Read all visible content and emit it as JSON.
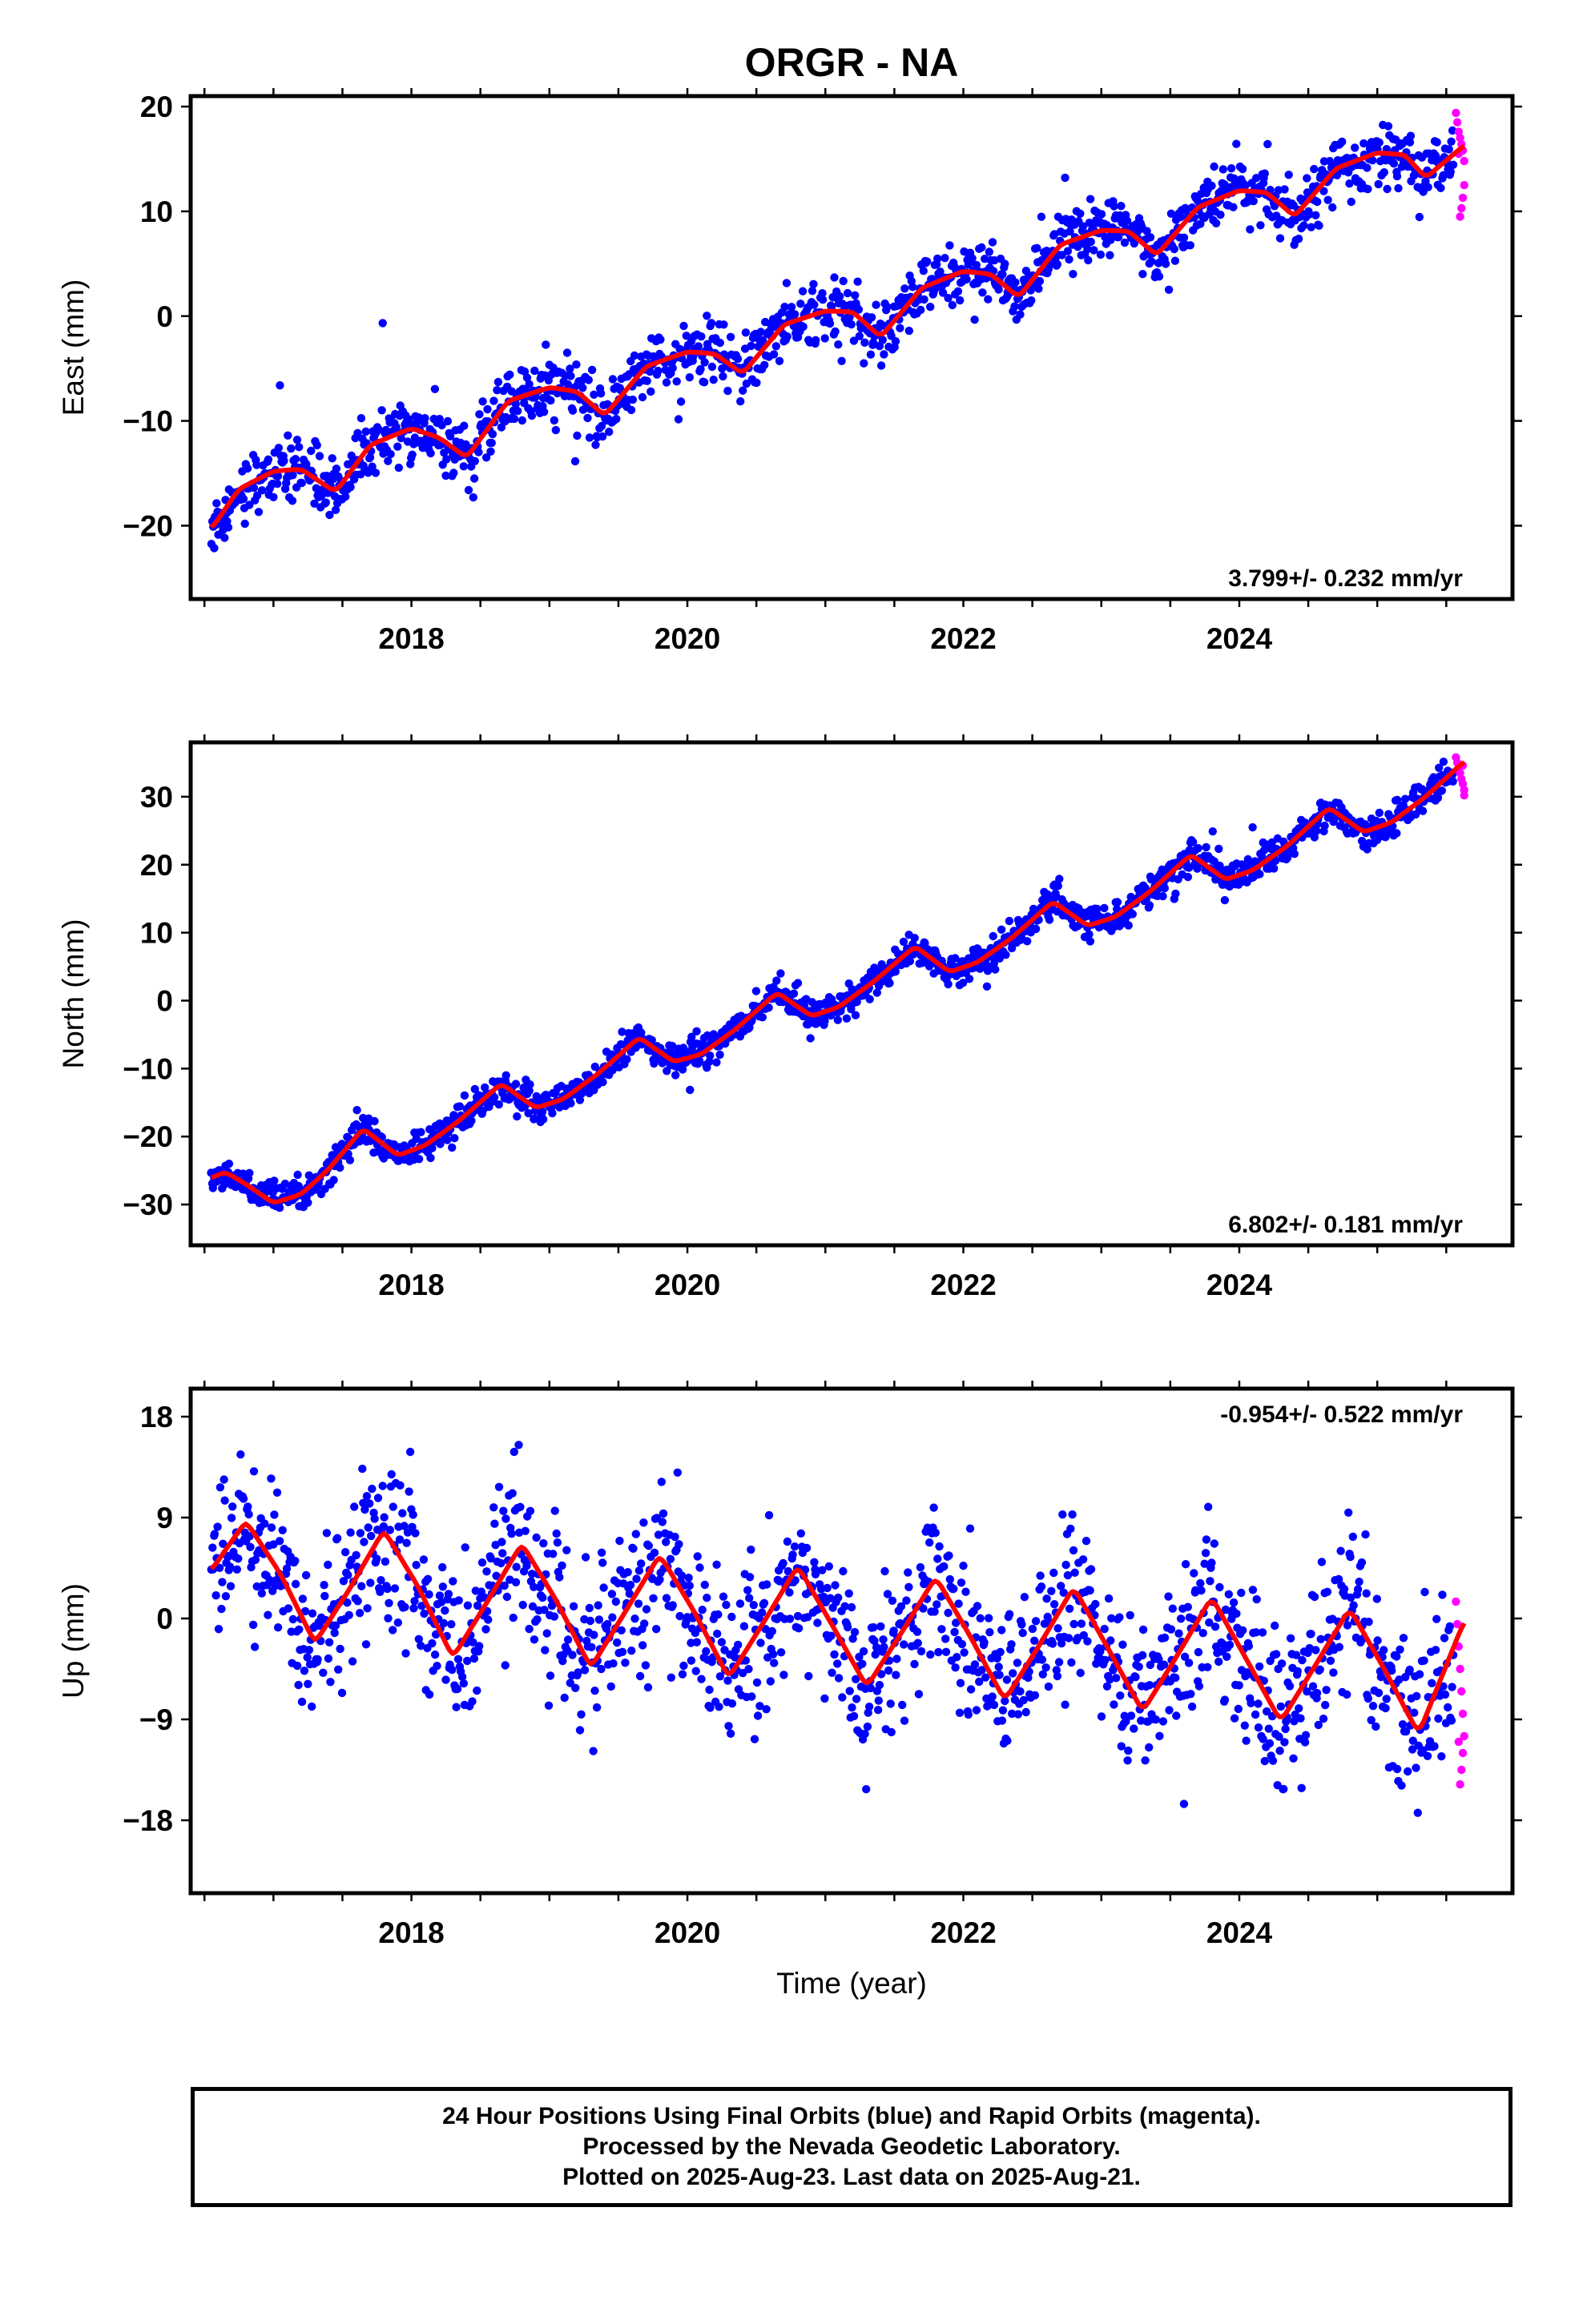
{
  "title": "ORGR - NA",
  "colors": {
    "final_orbits": "#0000ff",
    "rapid_orbits": "#ff00ff",
    "model": "#ff0000",
    "frame": "#000000"
  },
  "footer": {
    "line1": "24 Hour Positions Using Final Orbits (blue) and Rapid Orbits (magenta).",
    "line2": "Processed by the Nevada Geodetic Laboratory.",
    "line3": "Plotted on 2025-Aug-23. Last data on 2025-Aug-21."
  },
  "chart_data": [
    {
      "type": "scatter",
      "title": "ORGR - NA",
      "ylabel": "East (mm)",
      "xlabel": "",
      "xlim": [
        2016.4,
        2025.98
      ],
      "ylim": [
        -27,
        21
      ],
      "x_ticks": [
        2018,
        2020,
        2022,
        2024
      ],
      "y_ticks": [
        20,
        10,
        0,
        -10,
        -20
      ],
      "grid": false,
      "annotation": "3.799+/- 0.232 mm/yr",
      "rate_mm_per_yr": 3.799,
      "rate_sigma": 0.232,
      "series": [
        {
          "name": "model",
          "style": "line",
          "x": [
            2016.55,
            2016.75,
            2017.0,
            2017.2,
            2017.45,
            2017.7,
            2018.0,
            2018.2,
            2018.4,
            2018.7,
            2019.0,
            2019.2,
            2019.4,
            2019.7,
            2020.0,
            2020.2,
            2020.4,
            2020.7,
            2021.0,
            2021.2,
            2021.4,
            2021.7,
            2022.0,
            2022.2,
            2022.4,
            2022.7,
            2023.0,
            2023.2,
            2023.4,
            2023.7,
            2024.0,
            2024.2,
            2024.4,
            2024.7,
            2025.0,
            2025.2,
            2025.35,
            2025.63
          ],
          "y": [
            -20.3,
            -16.5,
            -14.8,
            -14.6,
            -16.8,
            -12.3,
            -10.7,
            -11.6,
            -13.5,
            -8.1,
            -6.8,
            -7.2,
            -9.5,
            -4.8,
            -3.4,
            -3.6,
            -5.5,
            -0.8,
            0.5,
            0.4,
            -2.0,
            2.7,
            4.3,
            4.0,
            1.8,
            6.8,
            8.2,
            8.1,
            5.8,
            10.4,
            12.0,
            11.8,
            9.5,
            14.1,
            15.6,
            15.4,
            13.2,
            16.3
          ]
        },
        {
          "name": "final",
          "style": "points",
          "generate": {
            "rate": 3.799,
            "t0": 2016.55,
            "y0": -20.3,
            "noise": 1.4
          },
          "x_range": [
            2016.55,
            2025.55
          ]
        },
        {
          "name": "rapid",
          "style": "points",
          "x": [
            2025.57,
            2025.58,
            2025.59,
            2025.6,
            2025.61,
            2025.62,
            2025.63,
            2025.63,
            2025.62,
            2025.61,
            2025.6,
            2025.59
          ],
          "y": [
            19.4,
            18.5,
            17.6,
            17.0,
            16.4,
            15.8,
            14.8,
            12.5,
            11.3,
            10.3,
            9.5,
            15.5
          ]
        }
      ]
    },
    {
      "type": "scatter",
      "title": "",
      "ylabel": "North (mm)",
      "xlabel": "",
      "xlim": [
        2016.4,
        2025.98
      ],
      "ylim": [
        -36,
        38
      ],
      "x_ticks": [
        2018,
        2020,
        2022,
        2024
      ],
      "y_ticks": [
        30,
        20,
        10,
        0,
        -10,
        -20,
        -30
      ],
      "grid": false,
      "annotation": "6.802+/- 0.181 mm/yr",
      "rate_mm_per_yr": 6.802,
      "rate_sigma": 0.181,
      "series": [
        {
          "name": "model",
          "style": "line",
          "x": [
            2016.55,
            2016.65,
            2016.8,
            2017.0,
            2017.2,
            2017.4,
            2017.65,
            2017.9,
            2018.1,
            2018.35,
            2018.65,
            2018.9,
            2019.1,
            2019.35,
            2019.65,
            2019.9,
            2020.1,
            2020.35,
            2020.65,
            2020.9,
            2021.1,
            2021.35,
            2021.65,
            2021.9,
            2022.1,
            2022.35,
            2022.65,
            2022.9,
            2023.1,
            2023.35,
            2023.65,
            2023.9,
            2024.1,
            2024.35,
            2024.65,
            2024.9,
            2025.1,
            2025.35,
            2025.63
          ],
          "y": [
            -26.1,
            -25.2,
            -27.0,
            -29.8,
            -28.5,
            -24.8,
            -18.8,
            -22.8,
            -21.3,
            -17.6,
            -12.2,
            -15.8,
            -14.5,
            -10.8,
            -5.4,
            -9.0,
            -7.9,
            -4.2,
            1.2,
            -2.3,
            -0.9,
            2.8,
            8.0,
            4.2,
            5.6,
            9.2,
            14.6,
            11.0,
            12.3,
            16.0,
            21.5,
            17.8,
            19.2,
            22.8,
            28.4,
            24.8,
            26.2,
            30.0,
            35.2
          ]
        },
        {
          "name": "final",
          "style": "points",
          "generate": {
            "rate": 6.802,
            "t0": 2016.55,
            "y0": -26.1,
            "noise": 1.2
          },
          "x_range": [
            2016.55,
            2025.55
          ]
        },
        {
          "name": "rapid",
          "style": "points",
          "x": [
            2025.57,
            2025.58,
            2025.59,
            2025.6,
            2025.61,
            2025.62,
            2025.63,
            2025.63,
            2025.62
          ],
          "y": [
            35.8,
            35.0,
            34.2,
            33.5,
            32.6,
            31.9,
            31.0,
            30.2,
            34.6
          ]
        }
      ]
    },
    {
      "type": "scatter",
      "title": "",
      "ylabel": "Up (mm)",
      "xlabel": "Time (year)",
      "xlim": [
        2016.4,
        2025.98
      ],
      "ylim": [
        -24.5,
        20.5
      ],
      "x_ticks": [
        2018,
        2020,
        2022,
        2024
      ],
      "y_ticks": [
        18,
        9,
        0,
        -9,
        -18
      ],
      "grid": false,
      "annotation": "-0.954+/- 0.522 mm/yr",
      "rate_mm_per_yr": -0.954,
      "rate_sigma": 0.522,
      "series": [
        {
          "name": "model",
          "style": "line",
          "x": [
            2016.55,
            2016.8,
            2017.05,
            2017.3,
            2017.55,
            2017.8,
            2018.05,
            2018.3,
            2018.55,
            2018.8,
            2019.05,
            2019.3,
            2019.55,
            2019.8,
            2020.05,
            2020.3,
            2020.55,
            2020.8,
            2021.05,
            2021.3,
            2021.55,
            2021.8,
            2022.05,
            2022.3,
            2022.55,
            2022.8,
            2023.05,
            2023.3,
            2023.55,
            2023.8,
            2024.05,
            2024.3,
            2024.55,
            2024.8,
            2025.05,
            2025.3,
            2025.63
          ],
          "y": [
            4.3,
            8.7,
            4.0,
            -2.2,
            2.6,
            7.9,
            2.8,
            -3.5,
            1.5,
            6.7,
            1.6,
            -4.4,
            0.6,
            5.7,
            0.6,
            -5.3,
            -0.4,
            4.7,
            -0.6,
            -6.1,
            -1.3,
            3.7,
            -1.6,
            -7.3,
            -2.4,
            2.8,
            -2.7,
            -8.3,
            -3.3,
            1.9,
            -3.6,
            -9.2,
            -4.2,
            0.9,
            -4.5,
            -10.3,
            -0.2
          ]
        },
        {
          "name": "final",
          "style": "points",
          "generate": {
            "rate": -0.954,
            "t0": 2016.55,
            "y0": 4.3,
            "noise": 3.6
          },
          "x_range": [
            2016.55,
            2025.55
          ]
        },
        {
          "name": "rapid",
          "style": "points",
          "x": [
            2025.57,
            2025.58,
            2025.59,
            2025.6,
            2025.61,
            2025.62,
            2025.63,
            2025.62,
            2025.61,
            2025.6,
            2025.59
          ],
          "y": [
            1.5,
            -0.5,
            -2.5,
            -4.5,
            -6.5,
            -8.5,
            -10.5,
            -12.0,
            -13.5,
            -14.8,
            -11.0
          ]
        }
      ]
    }
  ]
}
